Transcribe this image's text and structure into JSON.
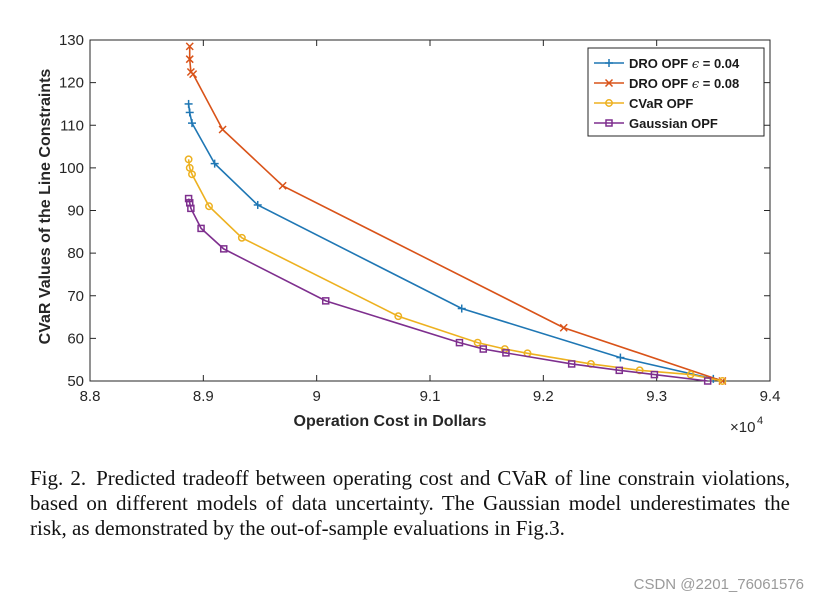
{
  "chart_data": {
    "type": "line",
    "title": "",
    "xlabel": "Operation Cost in Dollars",
    "ylabel": "CVaR Values of the Line Constraints",
    "x_multiplier_label": "×10",
    "x_multiplier_exponent": "4",
    "xlim": [
      8.8,
      9.4
    ],
    "ylim": [
      50,
      130
    ],
    "xticks": [
      8.8,
      8.9,
      9,
      9.1,
      9.2,
      9.3,
      9.4
    ],
    "xtick_labels": [
      "8.8",
      "8.9",
      "9",
      "9.1",
      "9.2",
      "9.3",
      "9.4"
    ],
    "yticks": [
      50,
      60,
      70,
      80,
      90,
      100,
      110,
      120,
      130
    ],
    "ytick_labels": [
      "50",
      "60",
      "70",
      "80",
      "90",
      "100",
      "110",
      "120",
      "130"
    ],
    "grid": false,
    "legend_position": "top-right",
    "series": [
      {
        "name": "DRO OPF ε = 0.04",
        "legend_prefix": "DRO OPF ",
        "legend_symbol": "ϵ",
        "legend_suffix": " = 0.04",
        "color": "#1f77b4",
        "marker": "plus",
        "x": [
          8.887,
          8.888,
          8.89,
          8.91,
          8.948,
          9.128,
          9.268,
          9.35
        ],
        "y": [
          115.0,
          113.0,
          110.5,
          101.0,
          91.3,
          67.0,
          55.5,
          50.5
        ]
      },
      {
        "name": "DRO OPF ε = 0.08",
        "legend_prefix": "DRO OPF ",
        "legend_symbol": "ϵ",
        "legend_suffix": " = 0.08",
        "color": "#d95319",
        "marker": "x",
        "x": [
          8.888,
          8.888,
          8.889,
          8.891,
          8.917,
          8.97,
          9.218,
          9.358
        ],
        "y": [
          128.5,
          125.5,
          122.5,
          122.0,
          109.0,
          95.8,
          62.5,
          50.0
        ]
      },
      {
        "name": "CVaR OPF",
        "legend_prefix": "CVaR OPF",
        "legend_symbol": "",
        "legend_suffix": "",
        "color": "#edb120",
        "marker": "circle",
        "x": [
          8.887,
          8.888,
          8.89,
          8.905,
          8.934,
          9.072,
          9.142,
          9.166,
          9.186,
          9.242,
          9.285,
          9.33,
          9.358
        ],
        "y": [
          102.0,
          100.0,
          98.5,
          91.0,
          83.6,
          65.2,
          59.0,
          57.5,
          56.5,
          54.0,
          52.5,
          51.5,
          50.0
        ]
      },
      {
        "name": "Gaussian OPF",
        "legend_prefix": "Gaussian OPF",
        "legend_symbol": "",
        "legend_suffix": "",
        "color": "#7e2f8e",
        "marker": "square",
        "x": [
          8.887,
          8.888,
          8.889,
          8.898,
          8.918,
          9.008,
          9.126,
          9.147,
          9.167,
          9.225,
          9.267,
          9.298,
          9.345
        ],
        "y": [
          92.8,
          91.8,
          90.5,
          85.8,
          81.0,
          68.8,
          59.0,
          57.5,
          56.6,
          54.0,
          52.5,
          51.5,
          50.0
        ]
      }
    ]
  },
  "caption": {
    "label": "Fig. 2.",
    "text": "Predicted tradeoff between operating cost and CVaR of line constrain violations, based on different models of data uncertainty. The Gaussian model underestimates the risk, as demonstrated by the out-of-sample evaluations in Fig.3."
  },
  "watermark": "CSDN @2201_76061576"
}
